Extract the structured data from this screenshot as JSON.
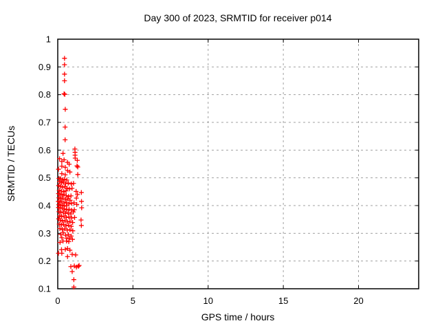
{
  "window": {
    "background": "#ffffff"
  },
  "chart_data": {
    "type": "scatter",
    "title": "Day 300 of 2023, SRMTID for receiver p014",
    "xlabel": "GPS time / hours",
    "ylabel": "SRMTID / TECUs",
    "xlim": [
      0,
      24
    ],
    "ylim": [
      0.1,
      1
    ],
    "xticks": {
      "values": [
        0,
        5,
        10,
        15,
        20
      ],
      "labels": [
        "0",
        "5",
        "10",
        "15",
        "20"
      ]
    },
    "yticks": {
      "values": [
        0.1,
        0.2,
        0.3,
        0.4,
        0.5,
        0.6,
        0.7,
        0.8,
        0.9,
        1
      ],
      "labels": [
        "0.1",
        "0.2",
        "0.3",
        "0.4",
        "0.5",
        "0.6",
        "0.7",
        "0.8",
        "0.9",
        "1"
      ]
    },
    "grid": true,
    "legend_position": "none",
    "marker": {
      "symbol": "plus",
      "color": "#ff0000",
      "size": 7
    },
    "grid_color": "#a0a0a0",
    "axis_color": "#000000",
    "series": [
      {
        "name": "SRMTID",
        "points": [
          [
            0.45,
            0.931
          ],
          [
            0.45,
            0.908
          ],
          [
            0.45,
            0.874
          ],
          [
            0.45,
            0.85
          ],
          [
            0.42,
            0.803
          ],
          [
            0.47,
            0.801
          ],
          [
            0.5,
            0.747
          ],
          [
            0.49,
            0.683
          ],
          [
            0.49,
            0.637
          ],
          [
            0.35,
            0.588
          ],
          [
            1.14,
            0.604
          ],
          [
            1.15,
            0.592
          ],
          [
            1.15,
            0.582
          ],
          [
            1.16,
            0.571
          ],
          [
            0.12,
            0.569
          ],
          [
            0.42,
            0.565
          ],
          [
            0.27,
            0.559
          ],
          [
            0.65,
            0.556
          ],
          [
            0.76,
            0.549
          ],
          [
            1.3,
            0.563
          ],
          [
            0.27,
            0.542
          ],
          [
            0.5,
            0.538
          ],
          [
            1.33,
            0.539
          ],
          [
            0.05,
            0.531
          ],
          [
            0.65,
            0.526
          ],
          [
            0.81,
            0.521
          ],
          [
            0.27,
            0.515
          ],
          [
            0.5,
            0.511
          ],
          [
            1.33,
            0.512
          ],
          [
            1.28,
            0.543
          ],
          [
            0.08,
            0.498
          ],
          [
            0.19,
            0.497
          ],
          [
            0.31,
            0.493
          ],
          [
            0.45,
            0.495
          ],
          [
            0.6,
            0.492
          ],
          [
            0.12,
            0.486
          ],
          [
            0.25,
            0.482
          ],
          [
            0.38,
            0.484
          ],
          [
            0.52,
            0.479
          ],
          [
            0.7,
            0.481
          ],
          [
            0.9,
            0.478
          ],
          [
            1.05,
            0.48
          ],
          [
            0.06,
            0.472
          ],
          [
            0.18,
            0.469
          ],
          [
            0.33,
            0.466
          ],
          [
            0.47,
            0.468
          ],
          [
            0.62,
            0.463
          ],
          [
            0.78,
            0.46
          ],
          [
            0.95,
            0.462
          ],
          [
            1.57,
            0.447
          ],
          [
            0.1,
            0.455
          ],
          [
            0.24,
            0.452
          ],
          [
            0.4,
            0.45
          ],
          [
            0.55,
            0.453
          ],
          [
            1.22,
            0.451
          ],
          [
            0.05,
            0.443
          ],
          [
            0.15,
            0.44
          ],
          [
            0.28,
            0.438
          ],
          [
            0.42,
            0.441
          ],
          [
            0.56,
            0.436
          ],
          [
            0.72,
            0.433
          ],
          [
            0.88,
            0.435
          ],
          [
            1.31,
            0.44
          ],
          [
            0.08,
            0.428
          ],
          [
            0.2,
            0.425
          ],
          [
            0.35,
            0.427
          ],
          [
            0.5,
            0.422
          ],
          [
            0.66,
            0.424
          ],
          [
            0.82,
            0.419
          ],
          [
            1.24,
            0.427
          ],
          [
            0.04,
            0.415
          ],
          [
            0.14,
            0.412
          ],
          [
            0.27,
            0.414
          ],
          [
            0.41,
            0.409
          ],
          [
            0.57,
            0.411
          ],
          [
            0.74,
            0.406
          ],
          [
            0.92,
            0.408
          ],
          [
            1.08,
            0.41
          ],
          [
            1.58,
            0.415
          ],
          [
            0.07,
            0.403
          ],
          [
            0.18,
            0.4
          ],
          [
            0.3,
            0.402
          ],
          [
            0.44,
            0.398
          ],
          [
            0.6,
            0.4
          ],
          [
            1.26,
            0.404
          ],
          [
            0.05,
            0.393
          ],
          [
            0.16,
            0.39
          ],
          [
            0.29,
            0.392
          ],
          [
            0.43,
            0.388
          ],
          [
            0.58,
            0.385
          ],
          [
            0.75,
            0.387
          ],
          [
            0.93,
            0.383
          ],
          [
            1.1,
            0.385
          ],
          [
            1.04,
            0.377
          ],
          [
            0.08,
            0.378
          ],
          [
            0.21,
            0.375
          ],
          [
            0.36,
            0.377
          ],
          [
            0.52,
            0.372
          ],
          [
            0.69,
            0.374
          ],
          [
            0.87,
            0.37
          ],
          [
            1.59,
            0.392
          ],
          [
            0.12,
            0.363
          ],
          [
            0.26,
            0.36
          ],
          [
            0.41,
            0.362
          ],
          [
            0.57,
            0.357
          ],
          [
            0.74,
            0.359
          ],
          [
            0.92,
            0.355
          ],
          [
            1.12,
            0.357
          ],
          [
            0.06,
            0.352
          ],
          [
            0.17,
            0.347
          ],
          [
            0.32,
            0.344
          ],
          [
            0.48,
            0.346
          ],
          [
            0.64,
            0.341
          ],
          [
            0.81,
            0.343
          ],
          [
            0.99,
            0.339
          ],
          [
            1.55,
            0.348
          ],
          [
            0.1,
            0.333
          ],
          [
            0.24,
            0.33
          ],
          [
            0.39,
            0.332
          ],
          [
            0.55,
            0.327
          ],
          [
            0.72,
            0.329
          ],
          [
            0.9,
            0.325
          ],
          [
            1.57,
            0.328
          ],
          [
            0.14,
            0.317
          ],
          [
            0.3,
            0.314
          ],
          [
            0.46,
            0.316
          ],
          [
            0.63,
            0.311
          ],
          [
            0.81,
            0.313
          ],
          [
            1.0,
            0.309
          ],
          [
            0.36,
            0.302
          ],
          [
            0.2,
            0.296
          ],
          [
            0.52,
            0.293
          ],
          [
            0.7,
            0.295
          ],
          [
            0.89,
            0.29
          ],
          [
            0.27,
            0.284
          ],
          [
            0.6,
            0.281
          ],
          [
            0.79,
            0.283
          ],
          [
            0.98,
            0.278
          ],
          [
            0.15,
            0.267
          ],
          [
            0.35,
            0.272
          ],
          [
            0.58,
            0.272
          ],
          [
            0.73,
            0.27
          ],
          [
            0.25,
            0.241
          ],
          [
            0.5,
            0.242
          ],
          [
            0.65,
            0.245
          ],
          [
            0.81,
            0.239
          ],
          [
            0.05,
            0.228
          ],
          [
            0.27,
            0.228
          ],
          [
            0.96,
            0.224
          ],
          [
            1.19,
            0.222
          ],
          [
            0.65,
            0.216
          ],
          [
            0.87,
            0.18
          ],
          [
            1.1,
            0.182
          ],
          [
            1.24,
            0.178
          ],
          [
            1.37,
            0.181
          ],
          [
            1.42,
            0.184
          ],
          [
            0.96,
            0.162
          ],
          [
            1.07,
            0.133
          ],
          [
            1.07,
            0.106
          ]
        ]
      }
    ]
  }
}
